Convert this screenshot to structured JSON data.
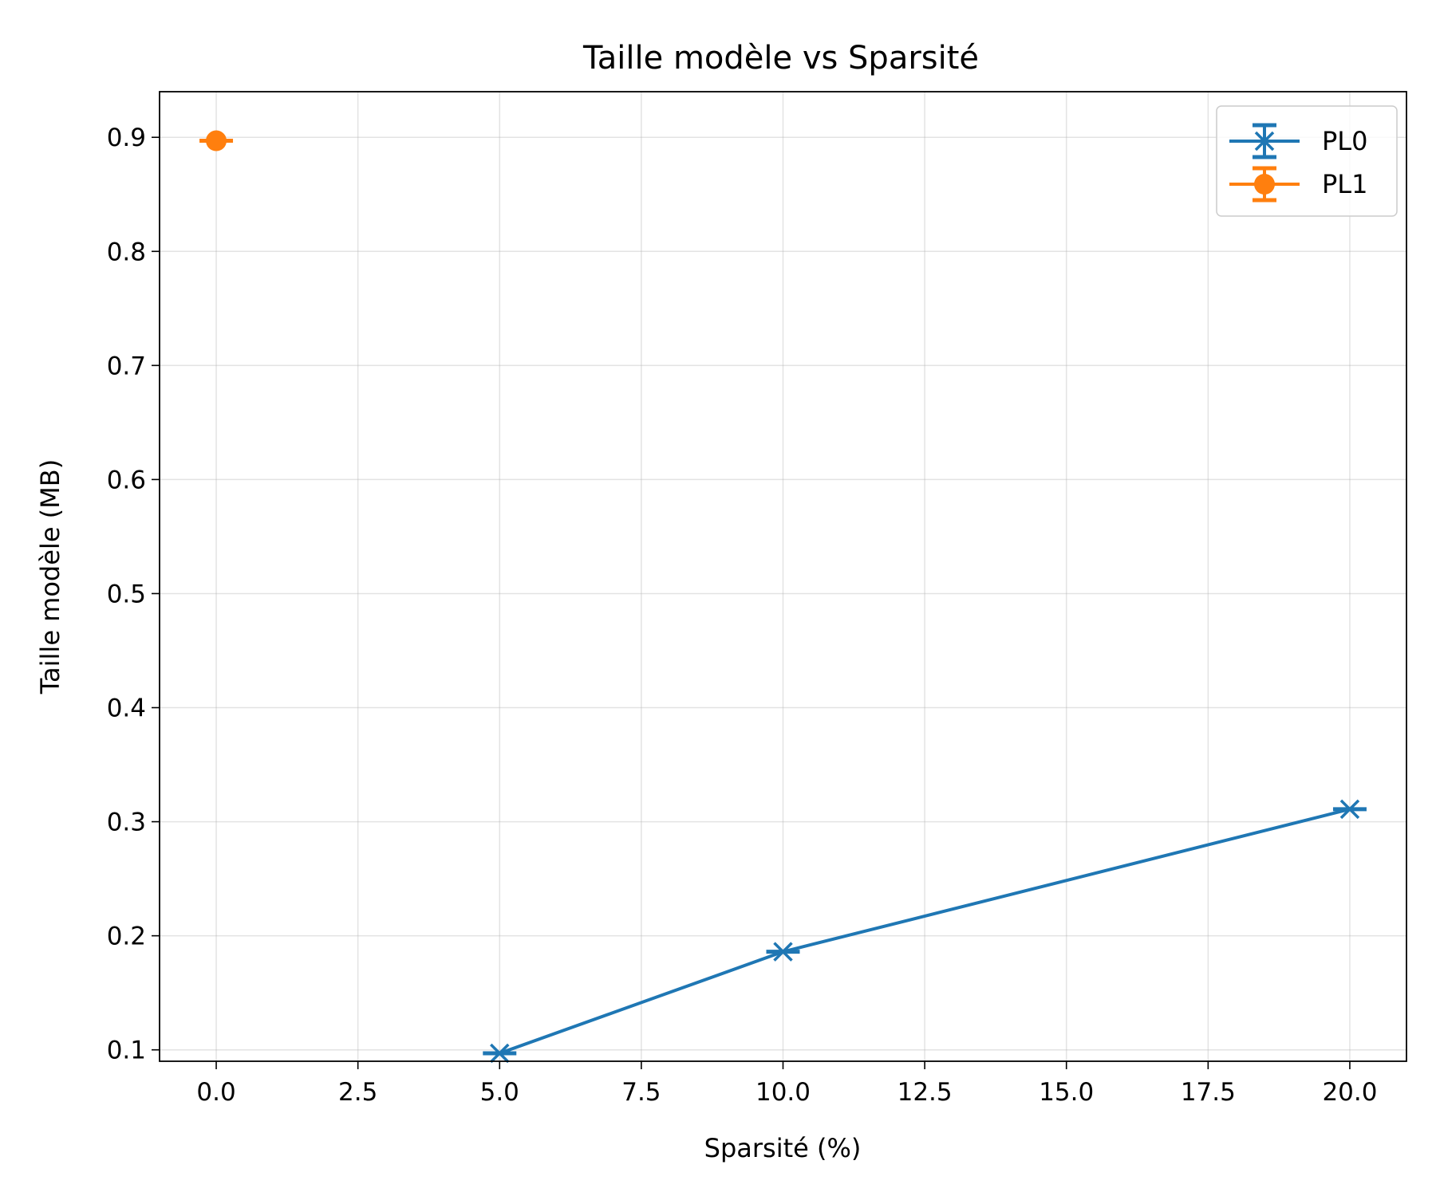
{
  "chart_data": {
    "type": "line",
    "title": "Taille modèle vs Sparsité",
    "xlabel": "Sparsité (%)",
    "ylabel": "Taille modèle (MB)",
    "xlim": [
      -1.0,
      21.0
    ],
    "ylim": [
      0.09,
      0.94
    ],
    "xticks": [
      0.0,
      2.5,
      5.0,
      7.5,
      10.0,
      12.5,
      15.0,
      17.5,
      20.0
    ],
    "xtick_labels": [
      "0.0",
      "2.5",
      "5.0",
      "7.5",
      "10.0",
      "12.5",
      "15.0",
      "17.5",
      "20.0"
    ],
    "yticks": [
      0.1,
      0.2,
      0.3,
      0.4,
      0.5,
      0.6,
      0.7,
      0.8,
      0.9
    ],
    "ytick_labels": [
      "0.1",
      "0.2",
      "0.3",
      "0.4",
      "0.5",
      "0.6",
      "0.7",
      "0.8",
      "0.9"
    ],
    "grid": true,
    "legend_position": "top-right",
    "series": [
      {
        "name": "PL0",
        "color": "#1f77b4",
        "marker": "x",
        "errorbars": true,
        "x": [
          5,
          10,
          20
        ],
        "y": [
          0.097,
          0.186,
          0.311
        ]
      },
      {
        "name": "PL1",
        "color": "#ff7f0e",
        "marker": "circle",
        "errorbars": true,
        "x": [
          0
        ],
        "y": [
          0.897
        ]
      }
    ]
  }
}
